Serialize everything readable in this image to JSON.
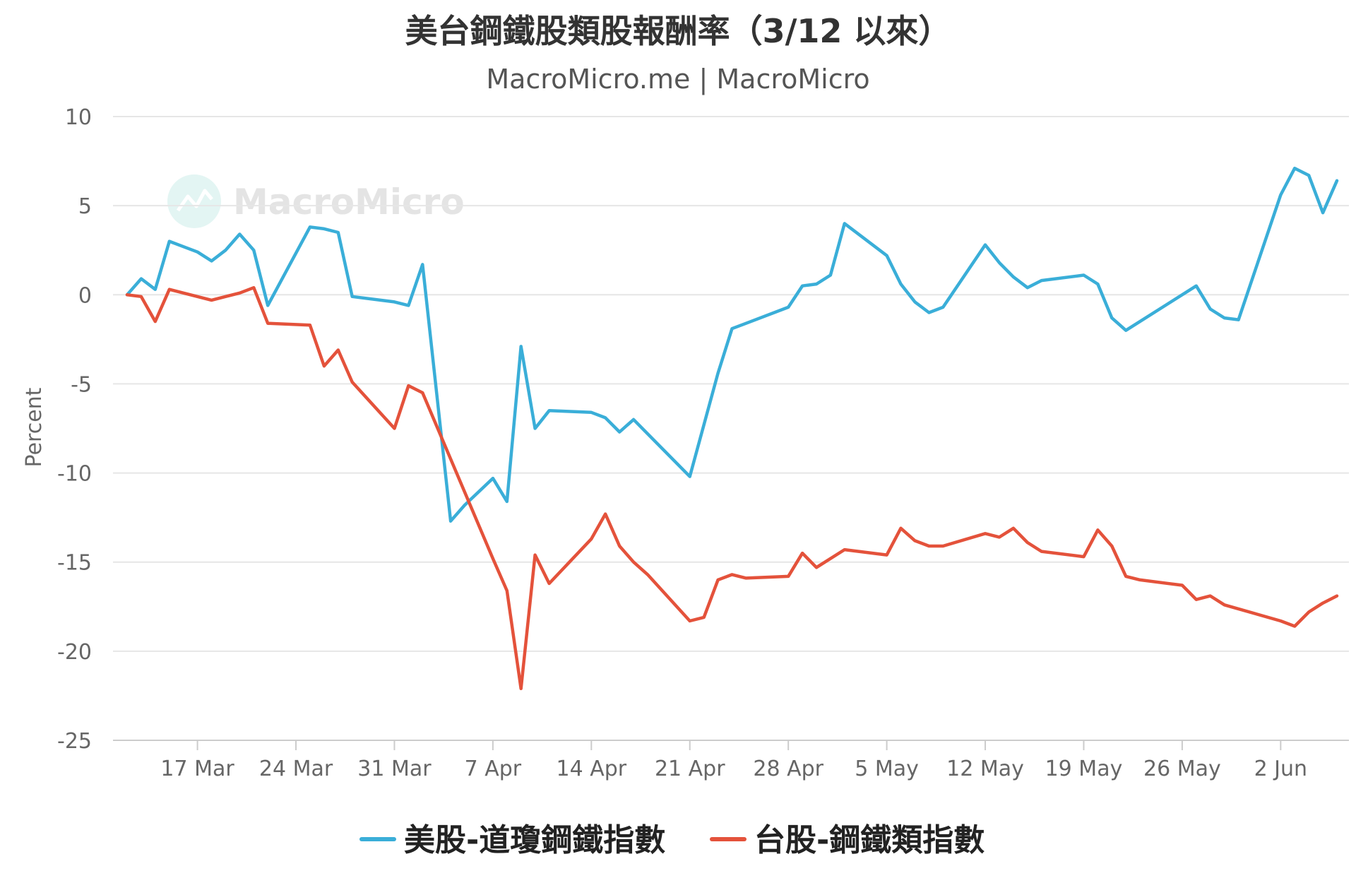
{
  "colors": {
    "us": "#3aaed8",
    "tw": "#e4523b",
    "grid": "#e6e6e6",
    "axis": "#cccccc"
  },
  "watermark": {
    "text": "MacroMicro",
    "icon": "macromicro-logo-icon"
  },
  "chart_data": {
    "type": "line",
    "title": "美台鋼鐵股類股報酬率（3/12 以來）",
    "subtitle": "MacroMicro.me | MacroMicro",
    "ylabel": "Percent",
    "xlabel": "",
    "ylim": [
      -25,
      10
    ],
    "yticks": [
      10,
      5,
      0,
      -5,
      -10,
      -15,
      -20,
      -25
    ],
    "xlim": [
      "2025-03-12",
      "2025-06-05"
    ],
    "xticks": [
      {
        "date": "2025-03-17",
        "label": "17 Mar"
      },
      {
        "date": "2025-03-24",
        "label": "24 Mar"
      },
      {
        "date": "2025-03-31",
        "label": "31 Mar"
      },
      {
        "date": "2025-04-07",
        "label": "7 Apr"
      },
      {
        "date": "2025-04-14",
        "label": "14 Apr"
      },
      {
        "date": "2025-04-21",
        "label": "21 Apr"
      },
      {
        "date": "2025-04-28",
        "label": "28 Apr"
      },
      {
        "date": "2025-05-05",
        "label": "5 May"
      },
      {
        "date": "2025-05-12",
        "label": "12 May"
      },
      {
        "date": "2025-05-19",
        "label": "19 May"
      },
      {
        "date": "2025-05-26",
        "label": "26 May"
      },
      {
        "date": "2025-06-02",
        "label": "2 Jun"
      }
    ],
    "grid": true,
    "legend_position": "bottom",
    "series": [
      {
        "name": "美股-道瓊鋼鐵指數",
        "color": "#3aaed8",
        "points": [
          [
            "2025-03-12",
            0.0
          ],
          [
            "2025-03-13",
            0.9
          ],
          [
            "2025-03-14",
            0.3
          ],
          [
            "2025-03-15",
            3.0
          ],
          [
            "2025-03-17",
            2.4
          ],
          [
            "2025-03-18",
            1.9
          ],
          [
            "2025-03-19",
            2.5
          ],
          [
            "2025-03-20",
            3.4
          ],
          [
            "2025-03-21",
            2.5
          ],
          [
            "2025-03-22",
            -0.6
          ],
          [
            "2025-03-25",
            3.8
          ],
          [
            "2025-03-26",
            3.7
          ],
          [
            "2025-03-27",
            3.5
          ],
          [
            "2025-03-28",
            -0.1
          ],
          [
            "2025-03-31",
            -0.4
          ],
          [
            "2025-04-01",
            -0.6
          ],
          [
            "2025-04-02",
            1.7
          ],
          [
            "2025-04-03",
            -5.5
          ],
          [
            "2025-04-04",
            -12.7
          ],
          [
            "2025-04-05",
            -11.8
          ],
          [
            "2025-04-07",
            -10.3
          ],
          [
            "2025-04-08",
            -11.6
          ],
          [
            "2025-04-09",
            -2.9
          ],
          [
            "2025-04-10",
            -7.5
          ],
          [
            "2025-04-11",
            -6.5
          ],
          [
            "2025-04-14",
            -6.6
          ],
          [
            "2025-04-15",
            -6.9
          ],
          [
            "2025-04-16",
            -7.7
          ],
          [
            "2025-04-17",
            -7.0
          ],
          [
            "2025-04-21",
            -10.2
          ],
          [
            "2025-04-23",
            -4.4
          ],
          [
            "2025-04-24",
            -1.9
          ],
          [
            "2025-04-25",
            -1.6
          ],
          [
            "2025-04-28",
            -0.7
          ],
          [
            "2025-04-29",
            0.5
          ],
          [
            "2025-04-30",
            0.6
          ],
          [
            "2025-05-01",
            1.1
          ],
          [
            "2025-05-02",
            4.0
          ],
          [
            "2025-05-05",
            2.2
          ],
          [
            "2025-05-06",
            0.6
          ],
          [
            "2025-05-07",
            -0.4
          ],
          [
            "2025-05-08",
            -1.0
          ],
          [
            "2025-05-09",
            -0.7
          ],
          [
            "2025-05-12",
            2.8
          ],
          [
            "2025-05-13",
            1.8
          ],
          [
            "2025-05-14",
            1.0
          ],
          [
            "2025-05-15",
            0.4
          ],
          [
            "2025-05-16",
            0.8
          ],
          [
            "2025-05-19",
            1.1
          ],
          [
            "2025-05-20",
            0.6
          ],
          [
            "2025-05-21",
            -1.3
          ],
          [
            "2025-05-22",
            -2.0
          ],
          [
            "2025-05-27",
            0.5
          ],
          [
            "2025-05-28",
            -0.8
          ],
          [
            "2025-05-29",
            -1.3
          ],
          [
            "2025-05-30",
            -1.4
          ],
          [
            "2025-06-02",
            5.6
          ],
          [
            "2025-06-03",
            7.1
          ],
          [
            "2025-06-04",
            6.7
          ],
          [
            "2025-06-05",
            4.6
          ],
          [
            "2025-06-06",
            6.4
          ]
        ]
      },
      {
        "name": "台股-鋼鐵類指數",
        "color": "#e4523b",
        "points": [
          [
            "2025-03-12",
            0.0
          ],
          [
            "2025-03-13",
            -0.1
          ],
          [
            "2025-03-14",
            -1.5
          ],
          [
            "2025-03-15",
            0.3
          ],
          [
            "2025-03-18",
            -0.3
          ],
          [
            "2025-03-19",
            -0.1
          ],
          [
            "2025-03-20",
            0.1
          ],
          [
            "2025-03-21",
            0.4
          ],
          [
            "2025-03-22",
            -1.6
          ],
          [
            "2025-03-25",
            -1.7
          ],
          [
            "2025-03-26",
            -4.0
          ],
          [
            "2025-03-27",
            -3.1
          ],
          [
            "2025-03-28",
            -4.9
          ],
          [
            "2025-03-31",
            -7.5
          ],
          [
            "2025-04-01",
            -5.1
          ],
          [
            "2025-04-02",
            -5.5
          ],
          [
            "2025-04-07",
            -14.8
          ],
          [
            "2025-04-08",
            -16.6
          ],
          [
            "2025-04-09",
            -22.1
          ],
          [
            "2025-04-10",
            -14.6
          ],
          [
            "2025-04-11",
            -16.2
          ],
          [
            "2025-04-14",
            -13.7
          ],
          [
            "2025-04-15",
            -12.3
          ],
          [
            "2025-04-16",
            -14.1
          ],
          [
            "2025-04-17",
            -15.0
          ],
          [
            "2025-04-18",
            -15.7
          ],
          [
            "2025-04-21",
            -18.3
          ],
          [
            "2025-04-22",
            -18.1
          ],
          [
            "2025-04-23",
            -16.0
          ],
          [
            "2025-04-24",
            -15.7
          ],
          [
            "2025-04-25",
            -15.9
          ],
          [
            "2025-04-28",
            -15.8
          ],
          [
            "2025-04-29",
            -14.5
          ],
          [
            "2025-04-30",
            -15.3
          ],
          [
            "2025-05-02",
            -14.3
          ],
          [
            "2025-05-05",
            -14.6
          ],
          [
            "2025-05-06",
            -13.1
          ],
          [
            "2025-05-07",
            -13.8
          ],
          [
            "2025-05-08",
            -14.1
          ],
          [
            "2025-05-09",
            -14.1
          ],
          [
            "2025-05-12",
            -13.4
          ],
          [
            "2025-05-13",
            -13.6
          ],
          [
            "2025-05-14",
            -13.1
          ],
          [
            "2025-05-15",
            -13.9
          ],
          [
            "2025-05-16",
            -14.4
          ],
          [
            "2025-05-19",
            -14.7
          ],
          [
            "2025-05-20",
            -13.2
          ],
          [
            "2025-05-21",
            -14.1
          ],
          [
            "2025-05-22",
            -15.8
          ],
          [
            "2025-05-23",
            -16.0
          ],
          [
            "2025-05-26",
            -16.3
          ],
          [
            "2025-05-27",
            -17.1
          ],
          [
            "2025-05-28",
            -16.9
          ],
          [
            "2025-05-29",
            -17.4
          ],
          [
            "2025-06-02",
            -18.3
          ],
          [
            "2025-06-03",
            -18.6
          ],
          [
            "2025-06-04",
            -17.8
          ],
          [
            "2025-06-05",
            -17.3
          ],
          [
            "2025-06-06",
            -16.9
          ]
        ]
      }
    ]
  }
}
